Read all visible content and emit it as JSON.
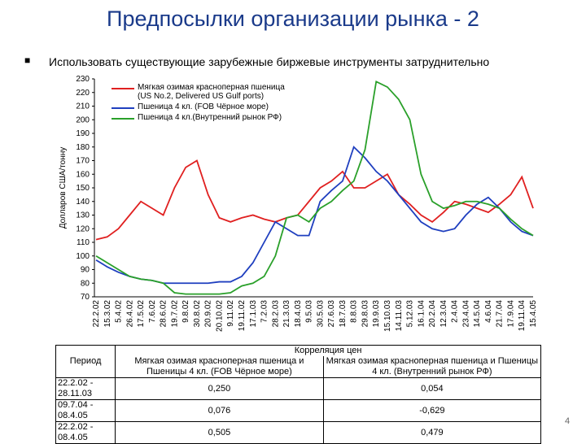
{
  "slide": {
    "title": "Предпосылки организации рынка - 2",
    "bullet": "Использовать существующие зарубежные биржевые инструменты затруднительно",
    "page_number": "4"
  },
  "chart_data": {
    "type": "line",
    "ylabel": "Долларов США/тонну",
    "categories": [
      "22.2.02",
      "15.3.02",
      "5.4.02",
      "26.4.02",
      "17.5.02",
      "7.6.02",
      "28.6.02",
      "19.7.02",
      "9.8.02",
      "30.8.02",
      "20.9.02",
      "20.10.02",
      "9.11.02",
      "19.11.02",
      "17.1.03",
      "7.2.03",
      "28.2.03",
      "21.3.03",
      "18.4.03",
      "9.5.03",
      "30.5.03",
      "27.6.03",
      "18.7.03",
      "8.8.03",
      "29.8.03",
      "19.9.03",
      "15.10.03",
      "14.11.03",
      "5.12.03",
      "16.1.04",
      "20.2.04",
      "12.3.04",
      "2.4.04",
      "23.4.04",
      "14.5.04",
      "4.6.04",
      "21.7.04",
      "17.9.04",
      "19.11.04",
      "15.4.05"
    ],
    "series": [
      {
        "name": "Мягкая озимая красноперная пшеница (US No.2, Delivered US Gulf ports)",
        "color": "#e02020",
        "values": [
          112,
          114,
          120,
          130,
          140,
          135,
          130,
          150,
          165,
          170,
          145,
          128,
          125,
          128,
          130,
          127,
          125,
          128,
          130,
          140,
          150,
          155,
          162,
          150,
          150,
          155,
          160,
          145,
          138,
          130,
          125,
          132,
          140,
          138,
          135,
          132,
          138,
          145,
          158,
          135
        ]
      },
      {
        "name": "Пшеница 4 кл. (FOB Чёрное море)",
        "color": "#1f3fbf",
        "values": [
          97,
          92,
          88,
          85,
          83,
          82,
          80,
          80,
          80,
          80,
          80,
          81,
          81,
          85,
          95,
          110,
          125,
          120,
          115,
          115,
          140,
          148,
          155,
          180,
          172,
          162,
          155,
          145,
          135,
          125,
          120,
          118,
          120,
          130,
          138,
          143,
          135,
          125,
          118,
          115
        ]
      },
      {
        "name": "Пшеница 4 кл.(Внутренний рынок РФ)",
        "color": "#2aa02a",
        "values": [
          100,
          95,
          90,
          85,
          83,
          82,
          80,
          73,
          72,
          72,
          72,
          72,
          73,
          78,
          80,
          85,
          100,
          128,
          130,
          125,
          135,
          140,
          148,
          155,
          178,
          228,
          224,
          215,
          200,
          160,
          140,
          135,
          137,
          140,
          140,
          138,
          135,
          127,
          120,
          115
        ]
      }
    ],
    "ylim": [
      70,
      230
    ],
    "yticks": [
      70,
      80,
      90,
      100,
      110,
      120,
      130,
      140,
      150,
      160,
      170,
      180,
      190,
      200,
      210,
      220,
      230
    ]
  },
  "table": {
    "period_header": "Период",
    "group_header": "Корреляция цен",
    "columns": [
      "Мягкая озимая красноперная пшеница и Пшеницы 4 кл. (FOB Чёрное море)",
      "Мягкая озимая красноперная пшеница и Пшеницы 4 кл. (Внутренний рынок РФ)"
    ],
    "rows": [
      [
        "22.2.02 - 28.11.03",
        "0,250",
        "0,054"
      ],
      [
        "09.7.04 - 08.4.05",
        "0,076",
        "-0,629"
      ],
      [
        "22.2.02 - 08.4.05",
        "0,505",
        "0,479"
      ]
    ]
  }
}
